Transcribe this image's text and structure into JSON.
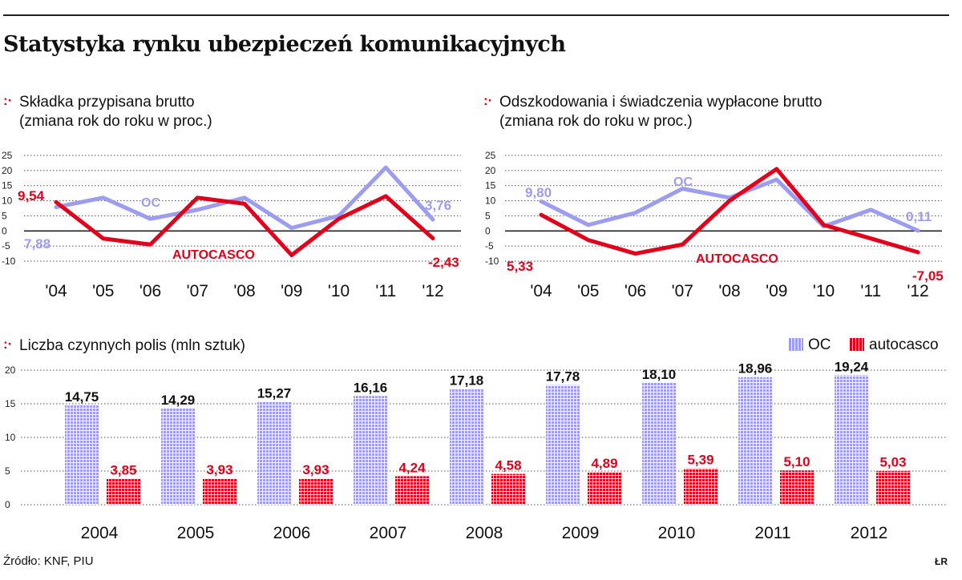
{
  "title": "Statystyka rynku ubezpieczeń komunikacyjnych",
  "source": "Źródło: KNF, PIU",
  "logo": "ŁR",
  "colors": {
    "oc": "#9c9cf0",
    "autocasco": "#e2001a",
    "axis": "#222222"
  },
  "chart_data": [
    {
      "type": "line",
      "title": "Składka przypisana brutto",
      "subtitle": "(zmiana rok do roku w proc.)",
      "categories": [
        "'04",
        "'05",
        "'06",
        "'07",
        "'08",
        "'09",
        "'10",
        "'11",
        "'12"
      ],
      "y_ticks": [
        "25",
        "20",
        "15",
        "10",
        "5",
        "0",
        "-5",
        "-10"
      ],
      "ylim": [
        -10,
        25
      ],
      "grid": "dotted horizontal",
      "series": [
        {
          "name": "OC",
          "values": [
            7.88,
            11,
            4,
            7,
            11,
            1,
            5,
            21,
            3.76
          ]
        },
        {
          "name": "AUTOCASCO",
          "values": [
            9.54,
            -2.5,
            -4.5,
            11,
            9,
            -8,
            4,
            11.5,
            -2.43
          ]
        }
      ],
      "point_labels": {
        "oc_first": "7,88",
        "oc_last": "3,76",
        "ac_first": "9,54",
        "ac_last": "-2,43"
      }
    },
    {
      "type": "line",
      "title": "Odszkodowania i świadczenia wypłacone brutto",
      "subtitle": "(zmiana rok do roku w proc.)",
      "categories": [
        "'04",
        "'05",
        "'06",
        "'07",
        "'08",
        "'09",
        "'10",
        "'11",
        "'12"
      ],
      "y_ticks": [
        "25",
        "20",
        "15",
        "10",
        "5",
        "0",
        "-5",
        "-10"
      ],
      "ylim": [
        -10,
        25
      ],
      "grid": "dotted horizontal",
      "series": [
        {
          "name": "OC",
          "values": [
            9.8,
            2,
            6,
            14,
            11,
            17,
            1.5,
            7,
            0.11
          ]
        },
        {
          "name": "AUTOCASCO",
          "values": [
            5.33,
            -3,
            -7.5,
            -4.5,
            10,
            20.5,
            2,
            -2.5,
            -7.05
          ]
        }
      ],
      "point_labels": {
        "oc_first": "9,80",
        "oc_last": "0,11",
        "ac_first": "5,33",
        "ac_last": "-7,05"
      }
    },
    {
      "type": "bar",
      "title": "Liczba czynnych polis (mln sztuk)",
      "categories": [
        "2004",
        "2005",
        "2006",
        "2007",
        "2008",
        "2009",
        "2010",
        "2011",
        "2012"
      ],
      "y_ticks": [
        "20",
        "15",
        "10",
        "5",
        "0"
      ],
      "ylim": [
        0,
        20
      ],
      "legend": "top-right",
      "legend_labels": [
        "OC",
        "autocasco"
      ],
      "series": [
        {
          "name": "OC",
          "values": [
            14.75,
            14.29,
            15.27,
            16.16,
            17.18,
            17.78,
            18.1,
            18.96,
            19.24
          ],
          "labels": [
            "14,75",
            "14,29",
            "15,27",
            "16,16",
            "17,18",
            "17,78",
            "18,10",
            "18,96",
            "19,24"
          ]
        },
        {
          "name": "autocasco",
          "values": [
            3.85,
            3.93,
            3.93,
            4.24,
            4.58,
            4.89,
            5.39,
            5.1,
            5.03
          ],
          "labels": [
            "3,85",
            "3,93",
            "3,93",
            "4,24",
            "4,58",
            "4,89",
            "5,39",
            "5,10",
            "5,03"
          ]
        }
      ]
    }
  ]
}
